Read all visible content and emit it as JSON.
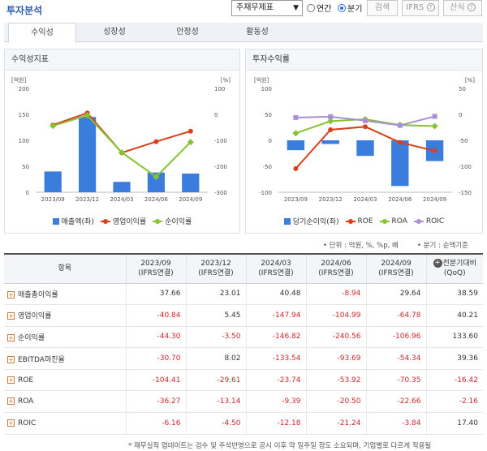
{
  "header": {
    "title": "투자분석",
    "select_value": "주재무제표",
    "radio_annual": "연간",
    "radio_quarter": "분기",
    "search_button": "검색",
    "ifrs_button": "IFRS",
    "formula_button": "산식"
  },
  "tabs": [
    {
      "label": "수익성",
      "active": true
    },
    {
      "label": "성장성",
      "active": false
    },
    {
      "label": "안정성",
      "active": false
    },
    {
      "label": "활동성",
      "active": false
    }
  ],
  "left_panel": {
    "title": "수익성지표",
    "left_unit": "[억원]",
    "right_unit": "[%]"
  },
  "right_panel": {
    "title": "투자수익률",
    "left_unit": "[억원]",
    "right_unit": "[%]"
  },
  "colors": {
    "bar": "#3b7ddd",
    "op_margin": "#d9401a",
    "net_margin": "#86c232",
    "roe": "#d9401a",
    "roa": "#86c232",
    "roic": "#a88fd6"
  },
  "chart_data": [
    {
      "type": "bar+line",
      "categories": [
        "2023/09",
        "2023/12",
        "2024/03",
        "2024/06",
        "2024/09"
      ],
      "left_axis": {
        "ticks": [
          "200",
          "150",
          "100",
          "50",
          "0"
        ],
        "ylim": [
          0,
          200
        ]
      },
      "right_axis": {
        "ticks": [
          "100",
          "0",
          "-100",
          "-200",
          "-300"
        ],
        "ylim": [
          -300,
          100
        ]
      },
      "series": [
        {
          "name": "매출액(좌)",
          "kind": "bar",
          "axis": "left",
          "values": [
            40,
            145,
            20,
            38,
            36
          ]
        },
        {
          "name": "영업이익률",
          "kind": "line",
          "axis": "right",
          "values": [
            -40.84,
            5.45,
            -147.94,
            -104.99,
            -64.78
          ]
        },
        {
          "name": "순이익률",
          "kind": "line",
          "axis": "right",
          "values": [
            -44.3,
            -3.5,
            -146.82,
            -240.56,
            -106.96
          ]
        }
      ],
      "grid": false,
      "legend": "bottom"
    },
    {
      "type": "bar+line",
      "categories": [
        "2023/09",
        "2023/12",
        "2024/03",
        "2024/06",
        "2024/09"
      ],
      "left_axis": {
        "ticks": [
          "100",
          "50",
          "0",
          "-50",
          "-100"
        ],
        "ylim": [
          -100,
          100
        ]
      },
      "right_axis": {
        "ticks": [
          "50",
          "0",
          "-50",
          "-100",
          "-150"
        ],
        "ylim": [
          -150,
          50
        ]
      },
      "series": [
        {
          "name": "당기순이익(좌)",
          "kind": "bar",
          "axis": "left",
          "values": [
            -19,
            -7,
            -30,
            -88,
            -40
          ]
        },
        {
          "name": "ROE",
          "kind": "line",
          "axis": "right",
          "values": [
            -104.41,
            -29.61,
            -23.74,
            -53.92,
            -70.35
          ]
        },
        {
          "name": "ROA",
          "kind": "line",
          "axis": "right",
          "values": [
            -36.27,
            -13.14,
            -9.39,
            -20.5,
            -22.66
          ]
        },
        {
          "name": "ROIC",
          "kind": "line",
          "axis": "right",
          "values": [
            -6.16,
            -4.5,
            -12.18,
            -21.24,
            -3.84
          ]
        }
      ],
      "grid": false,
      "legend": "bottom"
    }
  ],
  "notes": {
    "unit_note": "• 단위 : 억원, %, %p, 배",
    "quarter_note": "• 분기 : 순액기준",
    "footer": "* 재무실적 업데이트는 검수 및 주석반영으로 공시 이후 약 일주일 정도 소요되며, 기업별로 다르게 적용될"
  },
  "table": {
    "col_item": "항목",
    "columns": [
      {
        "date": "2023/09",
        "type": "(IFRS연결)"
      },
      {
        "date": "2023/12",
        "type": "(IFRS연결)"
      },
      {
        "date": "2024/03",
        "type": "(IFRS연결)"
      },
      {
        "date": "2024/06",
        "type": "(IFRS연결)"
      },
      {
        "date": "2024/09",
        "type": "(IFRS연결)"
      }
    ],
    "compare_label": "전분기대비",
    "compare_sub": "(QoQ)",
    "rows": [
      {
        "label": "매출총이익률",
        "values": [
          "37.66",
          "23.01",
          "40.48",
          "-8.94",
          "29.64",
          "38.59"
        ]
      },
      {
        "label": "영업이익률",
        "values": [
          "-40.84",
          "5.45",
          "-147.94",
          "-104.99",
          "-64.78",
          "40.21"
        ]
      },
      {
        "label": "순이익률",
        "values": [
          "-44.30",
          "-3.50",
          "-146.82",
          "-240.56",
          "-106.96",
          "133.60"
        ]
      },
      {
        "label": "EBITDA마진율",
        "values": [
          "-30.70",
          "8.02",
          "-133.54",
          "-93.69",
          "-54.34",
          "39.36"
        ]
      },
      {
        "label": "ROE",
        "values": [
          "-104.41",
          "-29.61",
          "-23.74",
          "-53.92",
          "-70.35",
          "-16.42"
        ]
      },
      {
        "label": "ROA",
        "values": [
          "-36.27",
          "-13.14",
          "-9.39",
          "-20.50",
          "-22.66",
          "-2.16"
        ]
      },
      {
        "label": "ROIC",
        "values": [
          "-6.16",
          "-4.50",
          "-12.18",
          "-21.24",
          "-3.84",
          "17.40"
        ]
      }
    ]
  }
}
